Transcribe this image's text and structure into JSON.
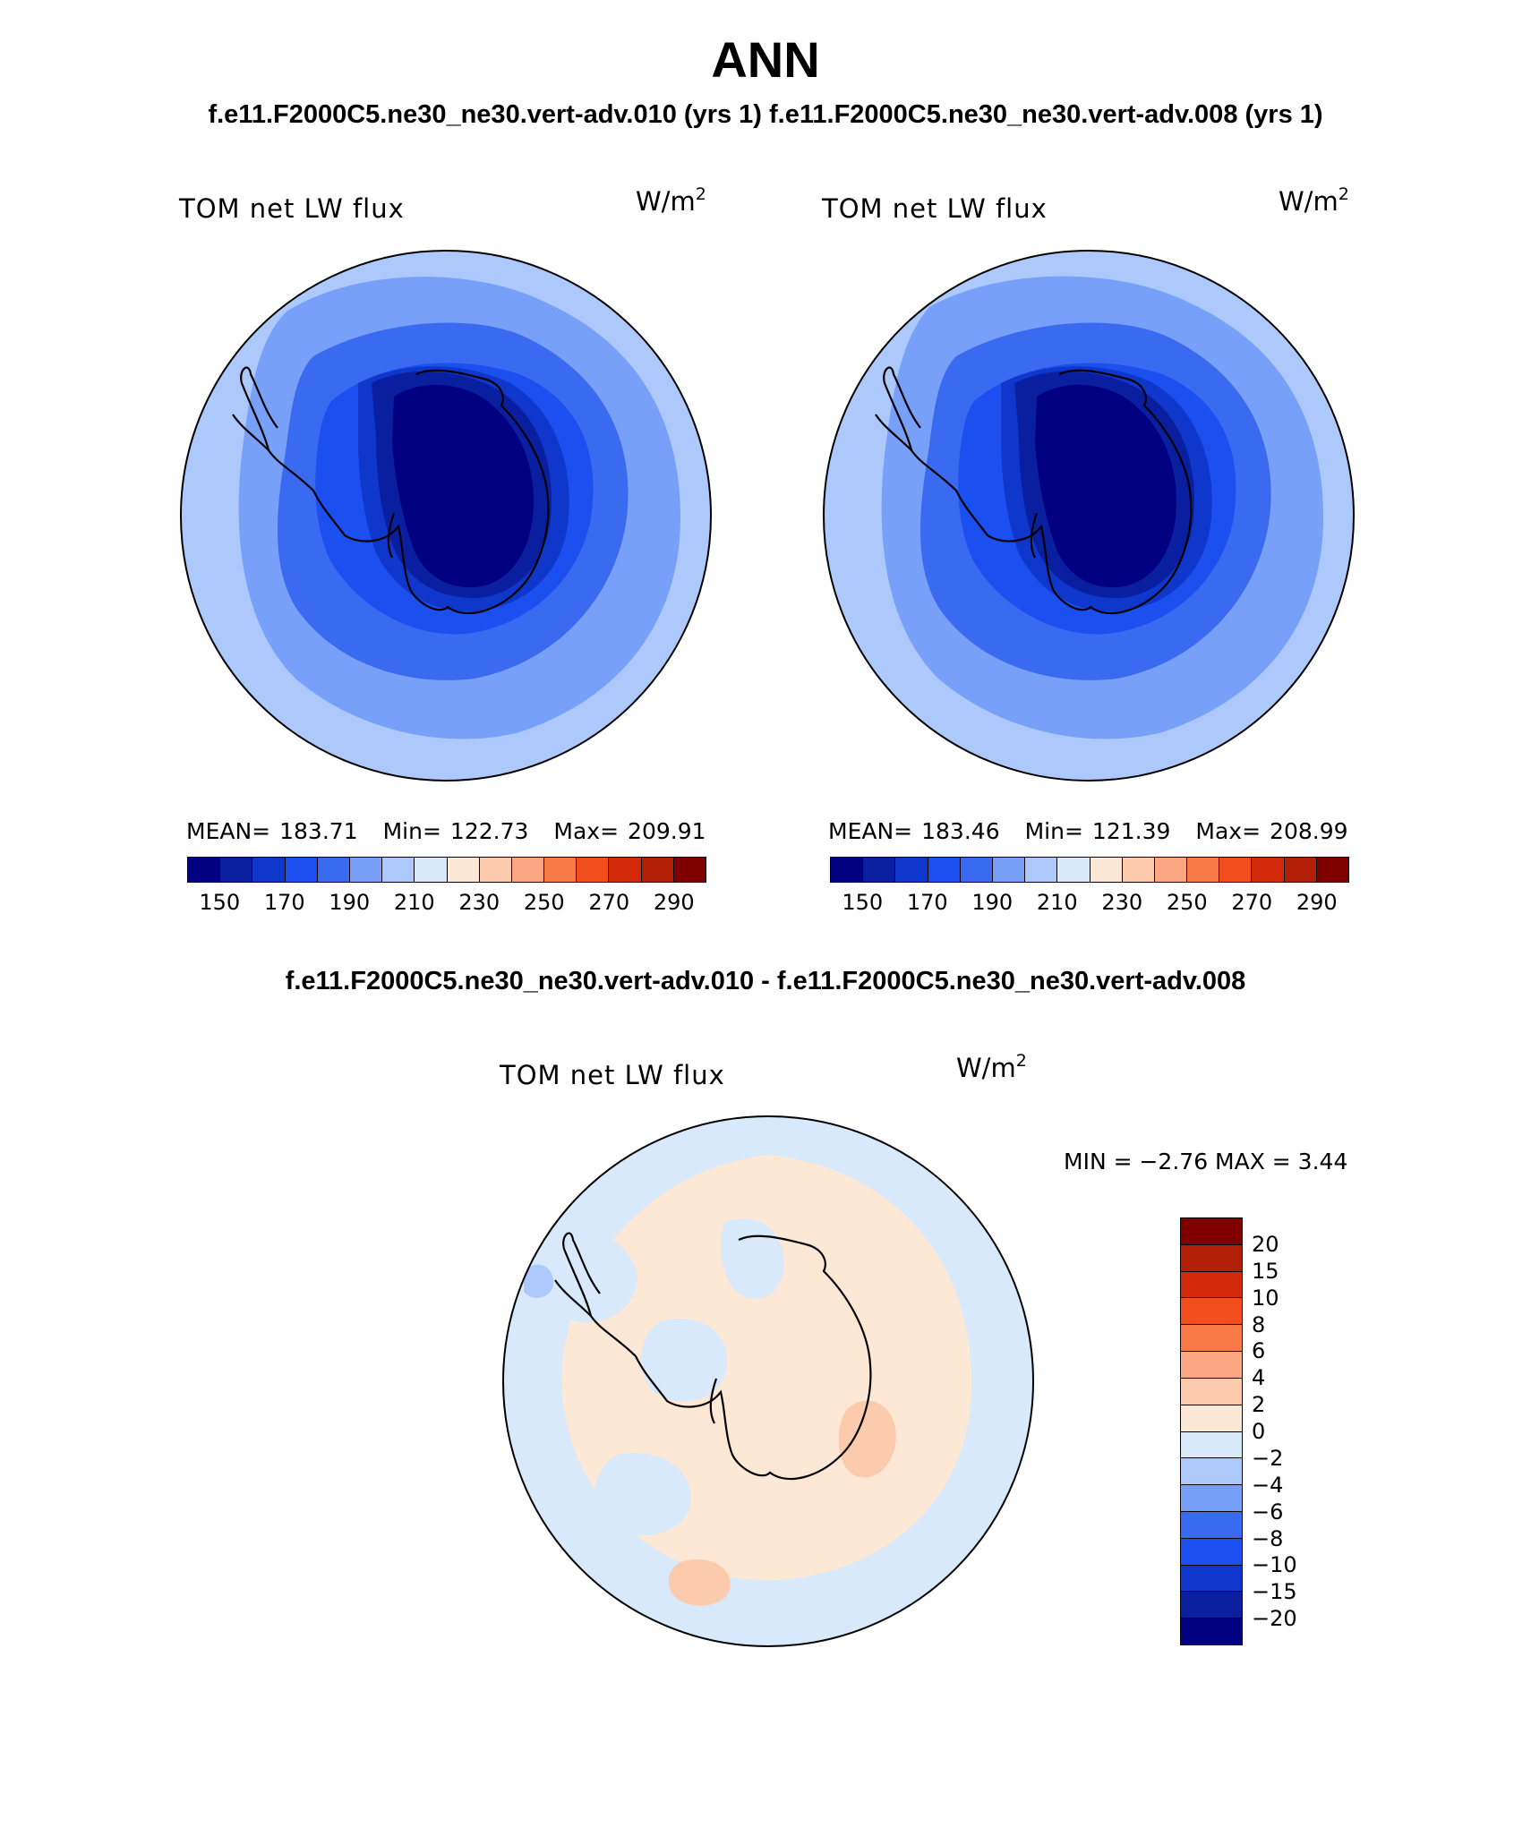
{
  "main_title": "ANN",
  "subtitle_top": "f.e11.F2000C5.ne30_ne30.vert-adv.010 (yrs 1) f.e11.F2000C5.ne30_ne30.vert-adv.008 (yrs 1)",
  "subtitle_diff": "f.e11.F2000C5.ne30_ne30.vert-adv.010 - f.e11.F2000C5.ne30_ne30.vert-adv.008",
  "panels": [
    {
      "title": "TOM net LW flux",
      "units_base": "W/m",
      "units_exp": "2",
      "stats": [
        {
          "label": "MEAN=",
          "value": "183.71"
        },
        {
          "label": "Min=",
          "value": "122.73"
        },
        {
          "label": "Max=",
          "value": "209.91"
        }
      ]
    },
    {
      "title": "TOM net LW flux",
      "units_base": "W/m",
      "units_exp": "2",
      "stats": [
        {
          "label": "MEAN=",
          "value": "183.46"
        },
        {
          "label": "Min=",
          "value": "121.39"
        },
        {
          "label": "Max=",
          "value": "208.99"
        }
      ]
    },
    {
      "title": "TOM net LW flux",
      "units_base": "W/m",
      "units_exp": "2",
      "minmax_text": "MIN =   −2.76 MAX =    3.44"
    }
  ],
  "colorbar_abs": {
    "colors": [
      "#000080",
      "#0a1ea0",
      "#0f37cc",
      "#1c4ff0",
      "#3a6aef",
      "#78a0f8",
      "#adc8fa",
      "#d7e9fb",
      "#fde8d6",
      "#fccaac",
      "#fba882",
      "#f97a46",
      "#f04e1c",
      "#d42a0c",
      "#b21e06",
      "#800000"
    ],
    "tick_labels": [
      "150",
      "170",
      "190",
      "210",
      "230",
      "250",
      "270",
      "290"
    ]
  },
  "colorbar_diff": {
    "colors_top_to_bottom": [
      "#800000",
      "#b21e06",
      "#d42a0c",
      "#f04e1c",
      "#f97a46",
      "#fba882",
      "#fccaac",
      "#fde8d6",
      "#d7e9fb",
      "#adc8fa",
      "#78a0f8",
      "#3a6aef",
      "#1c4ff0",
      "#0f37cc",
      "#0a1ea0",
      "#000080"
    ],
    "tick_labels_top_to_bottom": [
      "20",
      "15",
      "10",
      "8",
      "6",
      "4",
      "2",
      "0",
      "−2",
      "−4",
      "−6",
      "−8",
      "−10",
      "−15",
      "−20"
    ]
  },
  "map_colors": {
    "outer": "#adc8fa",
    "ring1": "#78a0f8",
    "ring2": "#3a6aef",
    "ring3": "#1c4ff0",
    "ring4": "#0f37cc",
    "ring5": "#0a1ea0",
    "core": "#000080",
    "diff_pos": "#fde8d6",
    "diff_neg": "#d7e9fb",
    "diff_pos2": "#fccaac",
    "diff_neg2": "#adc8fa",
    "coast": "#000000"
  }
}
